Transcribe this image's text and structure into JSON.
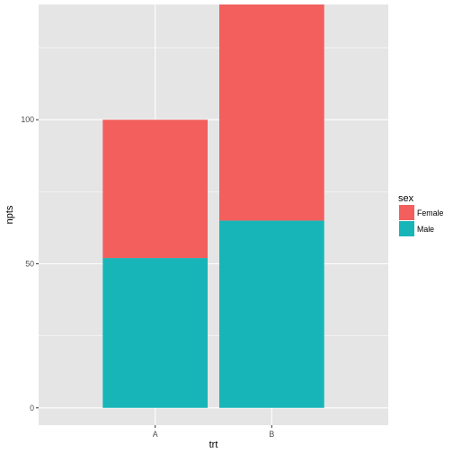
{
  "chart_data": {
    "type": "bar",
    "stacked": true,
    "categories": [
      "A",
      "B"
    ],
    "series": [
      {
        "name": "Male",
        "values": [
          52,
          65
        ],
        "color": "#17b5b8"
      },
      {
        "name": "Female",
        "values": [
          48,
          75
        ],
        "color": "#f25f5c"
      }
    ],
    "xlabel": "trt",
    "ylabel": "npts",
    "ylim": [
      -6,
      140
    ],
    "yticks": [
      0,
      50,
      100
    ],
    "grid": true,
    "legend": {
      "title": "sex",
      "placement": "right",
      "items": [
        {
          "label": "Female",
          "color": "#f25f5c"
        },
        {
          "label": "Male",
          "color": "#17b5b8"
        }
      ]
    },
    "panel_background": "#e5e5e5",
    "gridline_color": "#ffffff"
  }
}
